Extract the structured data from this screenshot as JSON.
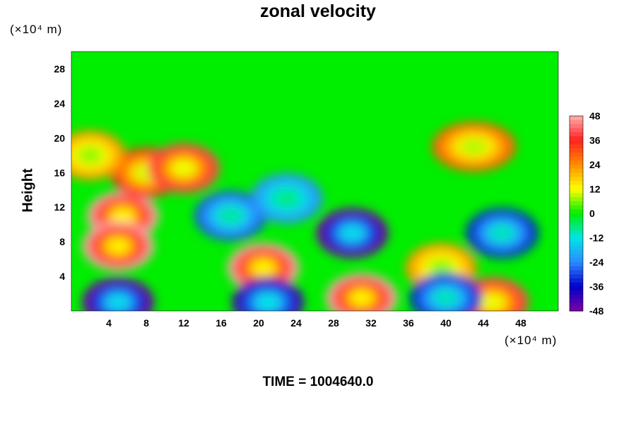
{
  "chart_data": {
    "type": "heatmap",
    "title": "zonal velocity",
    "ylabel": "Height",
    "y_unit": "(×10⁴ m)",
    "x_unit": "(×10⁴ m)",
    "footer": "TIME = 1004640.0",
    "xlim": [
      0,
      52
    ],
    "ylim": [
      0,
      30
    ],
    "x_ticks": [
      4,
      8,
      12,
      16,
      20,
      24,
      28,
      32,
      36,
      40,
      44,
      48
    ],
    "y_ticks": [
      4,
      8,
      12,
      16,
      20,
      24,
      28
    ],
    "colorbar": {
      "range": [
        -48,
        48
      ],
      "ticks": [
        48,
        36,
        24,
        12,
        0,
        -12,
        -24,
        -36,
        -48
      ],
      "colors": [
        "#ffb0b0",
        "#ff2020",
        "#ff8c00",
        "#ffff00",
        "#00ee00",
        "#00e5e5",
        "#2a8cff",
        "#0000cc",
        "#7a00a0"
      ]
    },
    "field": {
      "background": 0,
      "upper_layer": {
        "y_from": 20,
        "y_to": 30,
        "value": 0
      },
      "features": [
        {
          "x": 5.5,
          "y": 11,
          "value": 48,
          "note": "strong positive core"
        },
        {
          "x": 5,
          "y": 7.5,
          "value": 48
        },
        {
          "x": 8,
          "y": 16,
          "value": 36
        },
        {
          "x": 12,
          "y": 16.5,
          "value": 40
        },
        {
          "x": 2,
          "y": 18,
          "value": 24
        },
        {
          "x": 20.5,
          "y": 5,
          "value": 48
        },
        {
          "x": 31,
          "y": 1.5,
          "value": 48
        },
        {
          "x": 45,
          "y": 1,
          "value": 40
        },
        {
          "x": 43,
          "y": 19,
          "value": 30
        },
        {
          "x": 39.5,
          "y": 5,
          "value": 24
        },
        {
          "x": 30,
          "y": 9,
          "value": -48,
          "note": "strong negative core"
        },
        {
          "x": 46,
          "y": 9,
          "value": -36
        },
        {
          "x": 5,
          "y": 1,
          "value": -48
        },
        {
          "x": 21,
          "y": 1,
          "value": -44
        },
        {
          "x": 17,
          "y": 11,
          "value": -30
        },
        {
          "x": 23,
          "y": 13,
          "value": -24
        },
        {
          "x": 40,
          "y": 1.5,
          "value": -36
        }
      ]
    }
  }
}
